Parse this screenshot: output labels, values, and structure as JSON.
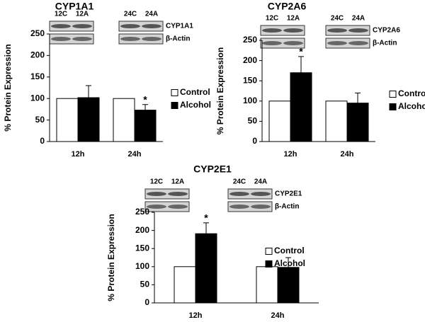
{
  "chart_data": [
    {
      "type": "bar",
      "title": "CYP1A1",
      "ylabel": "% Protein Expression",
      "categories": [
        "12h",
        "24h"
      ],
      "series": [
        {
          "name": "Control",
          "color": "#ffffff",
          "values": [
            100,
            100
          ]
        },
        {
          "name": "Alcohol",
          "color": "#000000",
          "values": [
            102,
            73
          ],
          "errors": [
            28,
            13
          ],
          "annotations": [
            null,
            "*"
          ]
        }
      ],
      "ylim": [
        0,
        250
      ],
      "yticks": [
        0,
        50,
        100,
        150,
        200,
        250
      ],
      "blot": {
        "lanes": [
          "12C",
          "12A",
          "24C",
          "24A"
        ],
        "proteins": [
          "CYP1A1",
          "β-Actin"
        ]
      }
    },
    {
      "type": "bar",
      "title": "CYP2A6",
      "ylabel": "% Protein Expression",
      "categories": [
        "12h",
        "24h"
      ],
      "series": [
        {
          "name": "Control",
          "color": "#ffffff",
          "values": [
            100,
            100
          ]
        },
        {
          "name": "Alcohol",
          "color": "#000000",
          "values": [
            170,
            95
          ],
          "errors": [
            40,
            25
          ],
          "annotations": [
            "*",
            null
          ]
        }
      ],
      "ylim": [
        0,
        250
      ],
      "yticks": [
        0,
        50,
        100,
        150,
        200,
        250
      ],
      "blot": {
        "lanes": [
          "12C",
          "12A",
          "24C",
          "24A"
        ],
        "proteins": [
          "CYP2A6",
          "β-Actin"
        ]
      }
    },
    {
      "type": "bar",
      "title": "CYP2E1",
      "ylabel": "% Protein Expression",
      "categories": [
        "12h",
        "24h"
      ],
      "series": [
        {
          "name": "Control",
          "color": "#ffffff",
          "values": [
            100,
            100
          ]
        },
        {
          "name": "Alcohol",
          "color": "#000000",
          "values": [
            191,
            98
          ],
          "errors": [
            30,
            27
          ],
          "annotations": [
            "*",
            null
          ]
        }
      ],
      "ylim": [
        0,
        250
      ],
      "yticks": [
        0,
        50,
        100,
        150,
        200,
        250
      ],
      "blot": {
        "lanes": [
          "12C",
          "12A",
          "24C",
          "24A"
        ],
        "proteins": [
          "CYP2E1",
          "β-Actin"
        ]
      }
    }
  ]
}
